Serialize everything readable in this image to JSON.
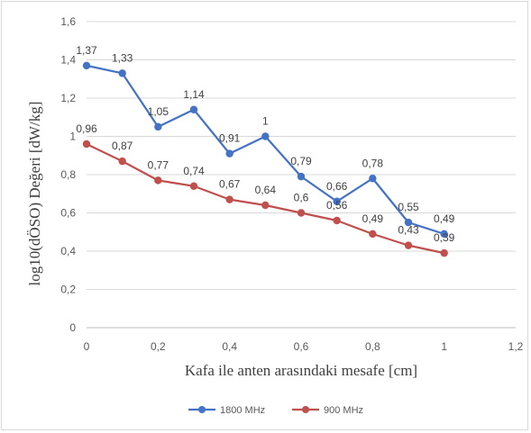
{
  "chart_data": {
    "type": "line",
    "title": "",
    "xlabel": "Kafa ile anten arasındaki mesafe [cm]",
    "ylabel": "log10(dÖSO) Değeri [dW/kg]",
    "xlim": [
      0,
      1.2
    ],
    "ylim": [
      0,
      1.6
    ],
    "x_ticks": [
      "0",
      "0,2",
      "0,4",
      "0,6",
      "0,8",
      "1",
      "1,2"
    ],
    "y_ticks": [
      "0",
      "0,2",
      "0,4",
      "0,6",
      "0,8",
      "1",
      "1,2",
      "1,4",
      "1,6"
    ],
    "x": [
      0,
      0.1,
      0.2,
      0.3,
      0.4,
      0.5,
      0.6,
      0.7,
      0.8,
      0.9,
      1.0
    ],
    "grid": "horizontal",
    "legend_position": "bottom",
    "series": [
      {
        "name": "1800 MHz",
        "color": "#4472c4",
        "values": [
          1.37,
          1.33,
          1.05,
          1.14,
          0.91,
          1.0,
          0.79,
          0.66,
          0.78,
          0.55,
          0.49
        ],
        "labels": [
          "1,37",
          "1,33",
          "1,05",
          "1,14",
          "0,91",
          "1",
          "0,79",
          "0,66",
          "0,78",
          "0,55",
          "0,49"
        ]
      },
      {
        "name": "900 MHz",
        "color": "#c0504d",
        "values": [
          0.96,
          0.87,
          0.77,
          0.74,
          0.67,
          0.64,
          0.6,
          0.56,
          0.49,
          0.43,
          0.39
        ],
        "labels": [
          "0,96",
          "0,87",
          "0,77",
          "0,74",
          "0,67",
          "0,64",
          "0,6",
          "0,56",
          "0,49",
          "0,43",
          "0,39"
        ]
      }
    ]
  }
}
